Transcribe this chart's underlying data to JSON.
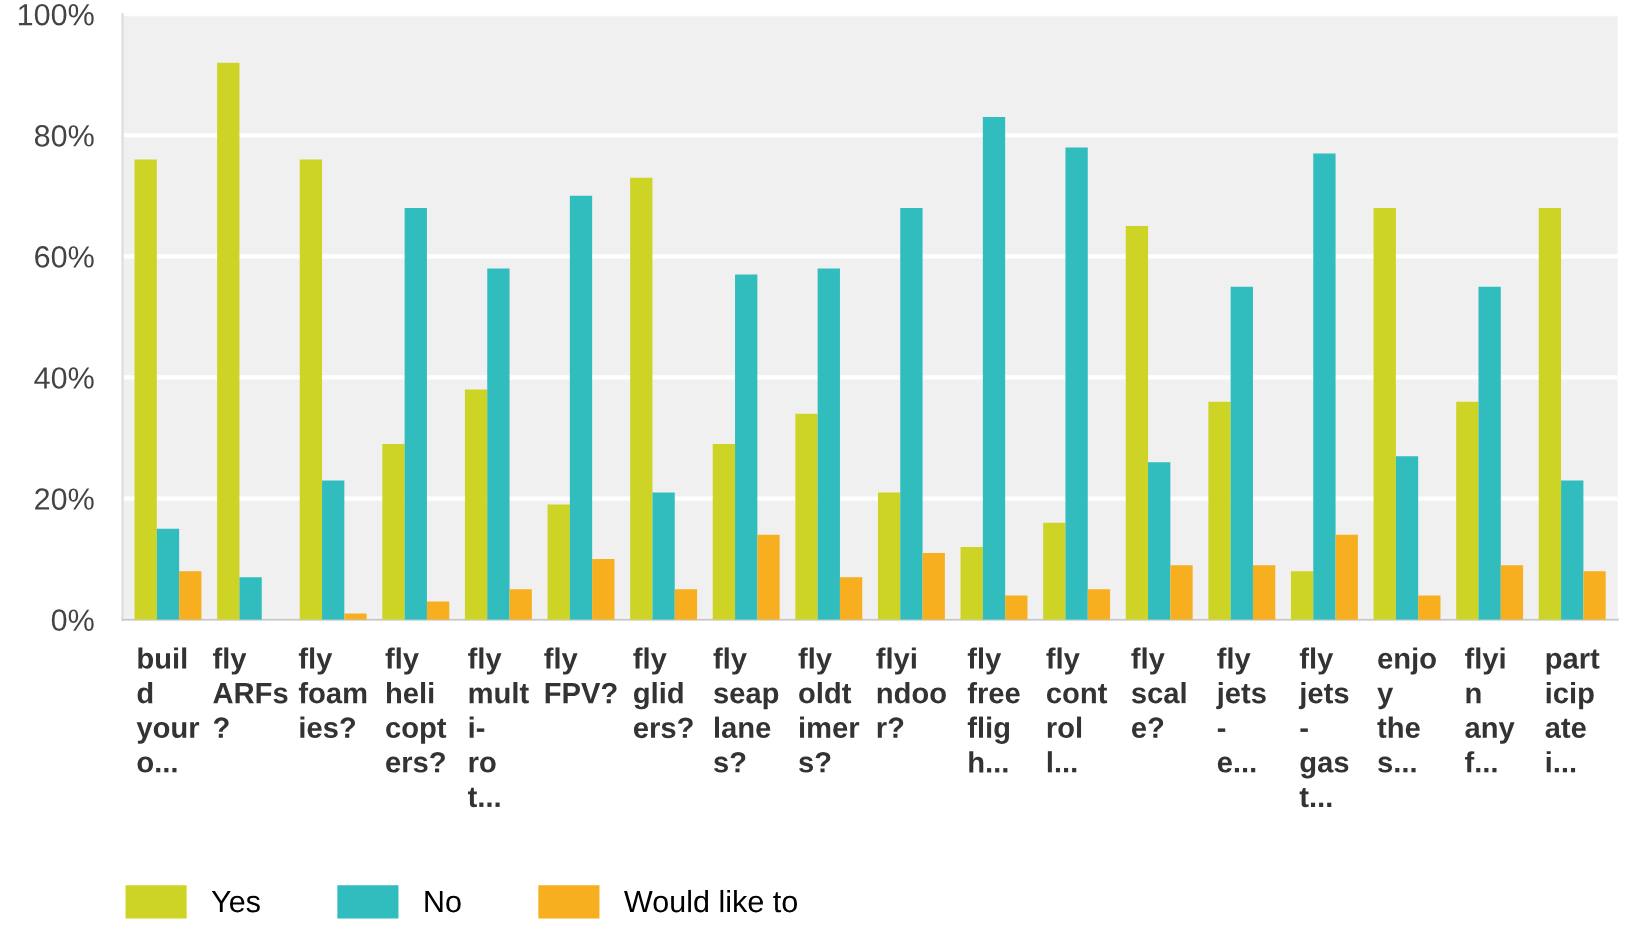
{
  "chart_data": {
    "type": "bar",
    "categories": [
      "buil\nd\nyour\no...",
      "fly\nARFs\n?",
      "fly\nfoam\nies?",
      "fly\nheli\ncopt\ners?",
      "fly\nmult\ni-\nro\nt...",
      "fly\nFPV?",
      "fly\nglid\ners?",
      "fly\nseap\nlane\ns?",
      "fly\noldt\nimer\ns?",
      "flyi\nndoo\nr?",
      "fly\nfree\nflig\nh...",
      "fly\ncont\nrol\nl...",
      "fly\nscal\ne?",
      "fly\njets\n-\ne...",
      "fly\njets\n-\ngas\nt...",
      "enjo\ny\nthe\ns...",
      "flyi\nn\nany\nf...",
      "part\nicip\nate\ni..."
    ],
    "series": [
      {
        "name": "Yes",
        "color": "#cdd425",
        "values": [
          76,
          92,
          76,
          29,
          38,
          19,
          73,
          29,
          34,
          21,
          12,
          16,
          65,
          36,
          8,
          68,
          36,
          68
        ]
      },
      {
        "name": "No",
        "color": "#31bcbe",
        "values": [
          15,
          7,
          23,
          68,
          58,
          70,
          21,
          57,
          58,
          68,
          83,
          78,
          26,
          55,
          77,
          27,
          55,
          23
        ]
      },
      {
        "name": "Would like to",
        "color": "#f7ae1f",
        "values": [
          8,
          0,
          1,
          3,
          5,
          10,
          5,
          14,
          7,
          11,
          4,
          5,
          9,
          9,
          14,
          4,
          9,
          8
        ]
      }
    ],
    "ylim": [
      0,
      100
    ],
    "yticks": [
      {
        "value": 0,
        "label": "0%"
      },
      {
        "value": 20,
        "label": "20%"
      },
      {
        "value": 40,
        "label": "40%"
      },
      {
        "value": 60,
        "label": "60%"
      },
      {
        "value": 80,
        "label": "80%"
      },
      {
        "value": 100,
        "label": "100%"
      }
    ],
    "grid": "y",
    "legend": "bottom left"
  }
}
